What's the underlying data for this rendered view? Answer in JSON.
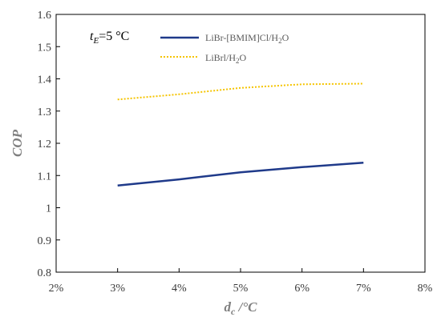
{
  "chart_data": {
    "type": "line",
    "x_tick_labels": [
      "2%",
      "3%",
      "4%",
      "5%",
      "6%",
      "7%",
      "8%"
    ],
    "x": [
      3,
      4,
      5,
      6,
      7
    ],
    "xlim": [
      2,
      8
    ],
    "ylim": [
      0.8,
      1.6
    ],
    "y_ticks": [
      0.8,
      0.9,
      1,
      1.1,
      1.2,
      1.3,
      1.4,
      1.5,
      1.6
    ],
    "y_tick_labels": [
      "0.8",
      "0.9",
      "1",
      "1.1",
      "1.2",
      "1.3",
      "1.4",
      "1.5",
      "1.6"
    ],
    "xlabel": {
      "main": "d",
      "sub": "c",
      "rest": " /°C"
    },
    "ylabel": "COP",
    "annotation": {
      "main": "t",
      "sub": "E",
      "rest": "=5 °C"
    },
    "grid": false,
    "legend_position": "top-center",
    "series": [
      {
        "name": "LiBr-[BMIM]Cl/H2O",
        "name_parts": {
          "a": "LiBr-[BMIM]Cl/H",
          "sub": "2",
          "b": "O"
        },
        "color": "#1f3a8a",
        "style": "solid",
        "values": [
          1.069,
          1.088,
          1.11,
          1.126,
          1.14
        ]
      },
      {
        "name": "LiBrl/H2O",
        "name_parts": {
          "a": "LiBrl/H",
          "sub": "2",
          "b": "O"
        },
        "color": "#f5c400",
        "style": "dotted",
        "values": [
          1.336,
          1.352,
          1.372,
          1.383,
          1.385
        ]
      }
    ]
  }
}
